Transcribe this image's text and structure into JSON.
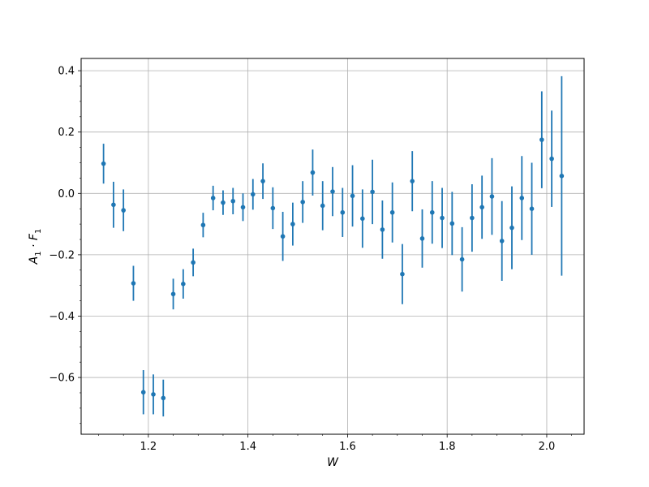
{
  "chart_data": {
    "type": "scatter",
    "xlabel": "W",
    "ylabel": "A_1 · F_1",
    "xlim": [
      1.065,
      2.075
    ],
    "ylim": [
      -0.785,
      0.44
    ],
    "grid": true,
    "marker_color": "#1f77b4",
    "x_ticks": [
      1.2,
      1.4,
      1.6,
      1.8,
      2.0
    ],
    "x_tick_labels": [
      "1.2",
      "1.4",
      "1.6",
      "1.8",
      "2.0"
    ],
    "y_ticks": [
      -0.6,
      -0.4,
      -0.2,
      0.0,
      0.2,
      0.4
    ],
    "y_tick_labels": [
      "−0.6",
      "−0.4",
      "−0.2",
      "0.0",
      "0.2",
      "0.4"
    ],
    "series": [
      {
        "x": [
          1.11,
          1.13,
          1.15,
          1.17,
          1.19,
          1.21,
          1.23,
          1.25,
          1.27,
          1.29,
          1.31,
          1.33,
          1.35,
          1.37,
          1.39,
          1.41,
          1.43,
          1.45,
          1.47,
          1.49,
          1.51,
          1.53,
          1.55,
          1.57,
          1.59,
          1.61,
          1.63,
          1.65,
          1.67,
          1.69,
          1.71,
          1.73,
          1.75,
          1.77,
          1.79,
          1.81,
          1.83,
          1.85,
          1.87,
          1.89,
          1.91,
          1.93,
          1.95,
          1.97,
          1.99,
          2.01,
          2.03
        ],
        "y": [
          0.097,
          -0.037,
          -0.055,
          -0.293,
          -0.648,
          -0.655,
          -0.667,
          -0.328,
          -0.295,
          -0.225,
          -0.103,
          -0.015,
          -0.03,
          -0.025,
          -0.045,
          -0.003,
          0.04,
          -0.048,
          -0.14,
          -0.1,
          -0.028,
          0.068,
          -0.04,
          0.006,
          -0.062,
          -0.008,
          -0.082,
          0.005,
          -0.118,
          -0.062,
          -0.263,
          0.04,
          -0.147,
          -0.062,
          -0.08,
          -0.098,
          -0.215,
          -0.08,
          -0.045,
          -0.01,
          -0.155,
          -0.112,
          -0.015,
          -0.05,
          0.175,
          0.113,
          0.057
        ],
        "err": [
          0.065,
          0.075,
          0.068,
          0.057,
          0.072,
          0.065,
          0.06,
          0.05,
          0.048,
          0.045,
          0.04,
          0.04,
          0.04,
          0.043,
          0.045,
          0.05,
          0.058,
          0.068,
          0.08,
          0.07,
          0.068,
          0.075,
          0.08,
          0.08,
          0.08,
          0.1,
          0.095,
          0.105,
          0.095,
          0.098,
          0.098,
          0.098,
          0.095,
          0.102,
          0.098,
          0.103,
          0.105,
          0.11,
          0.103,
          0.125,
          0.13,
          0.135,
          0.137,
          0.15,
          0.158,
          0.157,
          0.325
        ]
      }
    ]
  }
}
